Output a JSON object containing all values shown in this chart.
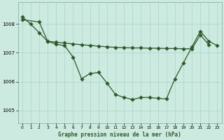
{
  "background_color": "#cceae0",
  "grid_color": "#aad4c8",
  "line_color": "#2d5a27",
  "x_label": "Graphe pression niveau de la mer (hPa)",
  "xlim": [
    -0.5,
    23.5
  ],
  "ylim": [
    1004.55,
    1008.75
  ],
  "yticks": [
    1005,
    1006,
    1007,
    1008
  ],
  "xticks": [
    0,
    1,
    2,
    3,
    4,
    5,
    6,
    7,
    8,
    9,
    10,
    11,
    12,
    13,
    14,
    15,
    16,
    17,
    18,
    19,
    20,
    21,
    22,
    23
  ],
  "series1_x": [
    0,
    1,
    2,
    3,
    4,
    5,
    6,
    7,
    8,
    9,
    10,
    11,
    12,
    13,
    14,
    15,
    16,
    17,
    18,
    19,
    20,
    21,
    22,
    23
  ],
  "series1_y": [
    1008.25,
    1008.0,
    1007.7,
    1007.4,
    1007.3,
    1007.25,
    1006.85,
    1006.1,
    1006.28,
    1006.32,
    1005.95,
    1005.55,
    1005.45,
    1005.38,
    1005.45,
    1005.45,
    1005.42,
    1005.4,
    1006.1,
    1006.65,
    1007.2,
    1007.75,
    1007.4,
    1007.25
  ],
  "series2_x": [
    0,
    2,
    3
  ],
  "series2_y": [
    1008.15,
    1008.07,
    1007.4
  ],
  "series3_x": [
    3,
    4,
    5,
    6,
    7,
    8,
    9,
    10,
    11,
    12,
    13,
    14,
    15,
    16,
    17,
    18,
    19,
    20,
    21,
    22
  ],
  "series3_y": [
    1007.4,
    1007.37,
    1007.34,
    1007.31,
    1007.28,
    1007.26,
    1007.23,
    1007.21,
    1007.19,
    1007.18,
    1007.17,
    1007.17,
    1007.16,
    1007.16,
    1007.15,
    1007.15,
    1007.14,
    1007.14,
    1007.62,
    1007.28
  ]
}
